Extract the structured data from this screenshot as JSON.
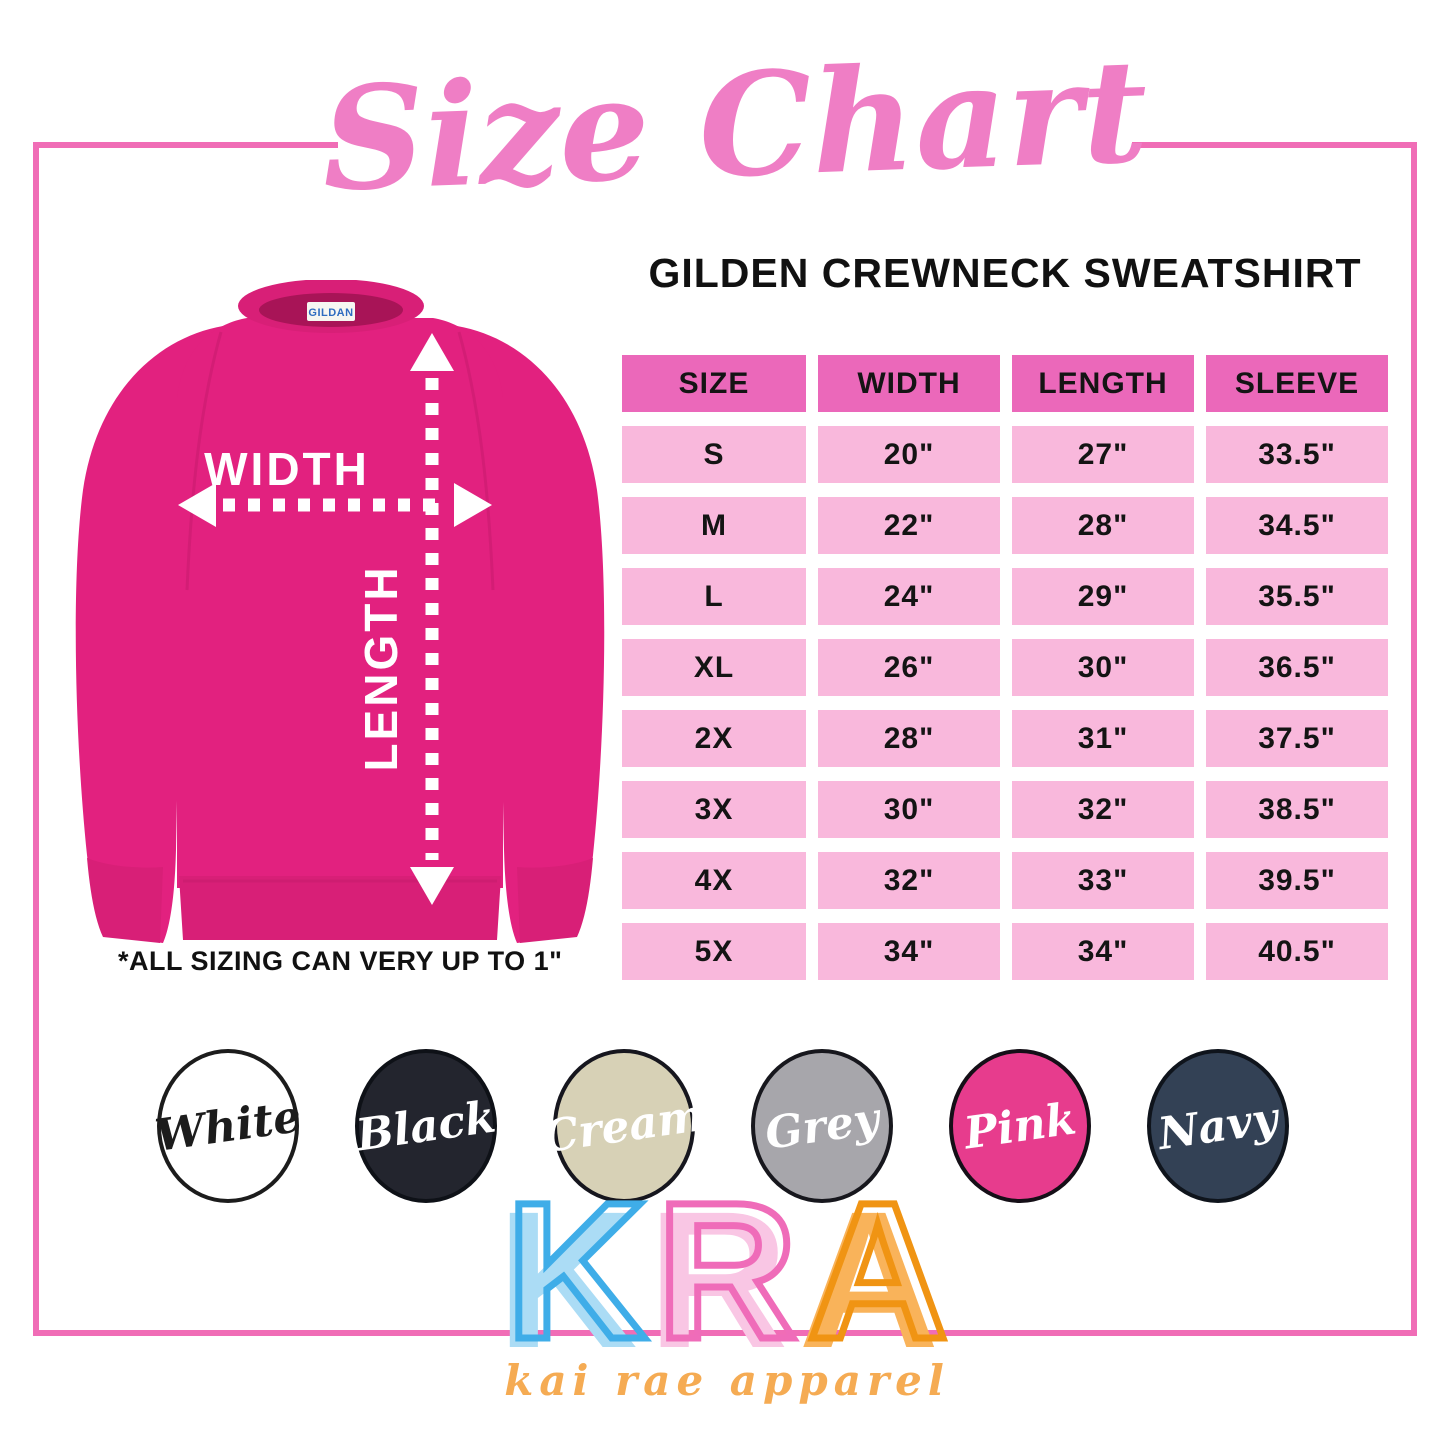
{
  "theme": {
    "frame_color": "#f06db6",
    "title_color": "#ef7ec5",
    "table_header_bg": "#eb68ba",
    "table_row_bg": "#f9b8dc",
    "text_color": "#111111"
  },
  "title": {
    "text": "Size Chart"
  },
  "subtitle": {
    "text": "GILDEN CREWNECK SWEATSHIRT"
  },
  "garment": {
    "body_color": "#e2217f",
    "shade_color": "#c61c6d",
    "trim_color": "#d81f77",
    "inner_collar_color": "#a81457",
    "width_label": "WIDTH",
    "length_label": "LENGTH",
    "collar_tag": "GILDAN"
  },
  "note": {
    "text": "*ALL SIZING CAN VERY UP TO 1\""
  },
  "chart_data": {
    "type": "table",
    "title": "Size Chart",
    "subtitle": "GILDEN CREWNECK SWEATSHIRT",
    "columns": [
      "SIZE",
      "WIDTH",
      "LENGTH",
      "SLEEVE"
    ],
    "rows": [
      [
        "S",
        "20\"",
        "27\"",
        "33.5\""
      ],
      [
        "M",
        "22\"",
        "28\"",
        "34.5\""
      ],
      [
        "L",
        "24\"",
        "29\"",
        "35.5\""
      ],
      [
        "XL",
        "26\"",
        "30\"",
        "36.5\""
      ],
      [
        "2X",
        "28\"",
        "31\"",
        "37.5\""
      ],
      [
        "3X",
        "30\"",
        "32\"",
        "38.5\""
      ],
      [
        "4X",
        "32\"",
        "33\"",
        "39.5\""
      ],
      [
        "5X",
        "34\"",
        "34\"",
        "40.5\""
      ]
    ]
  },
  "swatches": [
    {
      "label": "White",
      "fill": "#ffffff",
      "text_color": "#1c1c1c",
      "ring": "#1c1c1c"
    },
    {
      "label": "Black",
      "fill": "#23252e",
      "text_color": "#ffffff",
      "ring": "#0e1117"
    },
    {
      "label": "Cream",
      "fill": "#d7d1b6",
      "text_color": "#ffffff",
      "ring": "#16161e"
    },
    {
      "label": "Grey",
      "fill": "#a7a6ab",
      "text_color": "#ffffff",
      "ring": "#17171d"
    },
    {
      "label": "Pink",
      "fill": "#e73c8d",
      "text_color": "#ffffff",
      "ring": "#150f17"
    },
    {
      "label": "Navy",
      "fill": "#334155",
      "text_color": "#ffffff",
      "ring": "#0f141c"
    }
  ],
  "brand": {
    "letters": [
      {
        "char": "K",
        "fill": "#abdcf5",
        "stroke": "#3fade8"
      },
      {
        "char": "R",
        "fill": "#f9c6e4",
        "stroke": "#ef6cb9"
      },
      {
        "char": "A",
        "fill": "#f9b35a",
        "stroke": "#f09413"
      }
    ],
    "tagline": {
      "text": "kai rae apparel",
      "color": "#f5ab53"
    }
  }
}
